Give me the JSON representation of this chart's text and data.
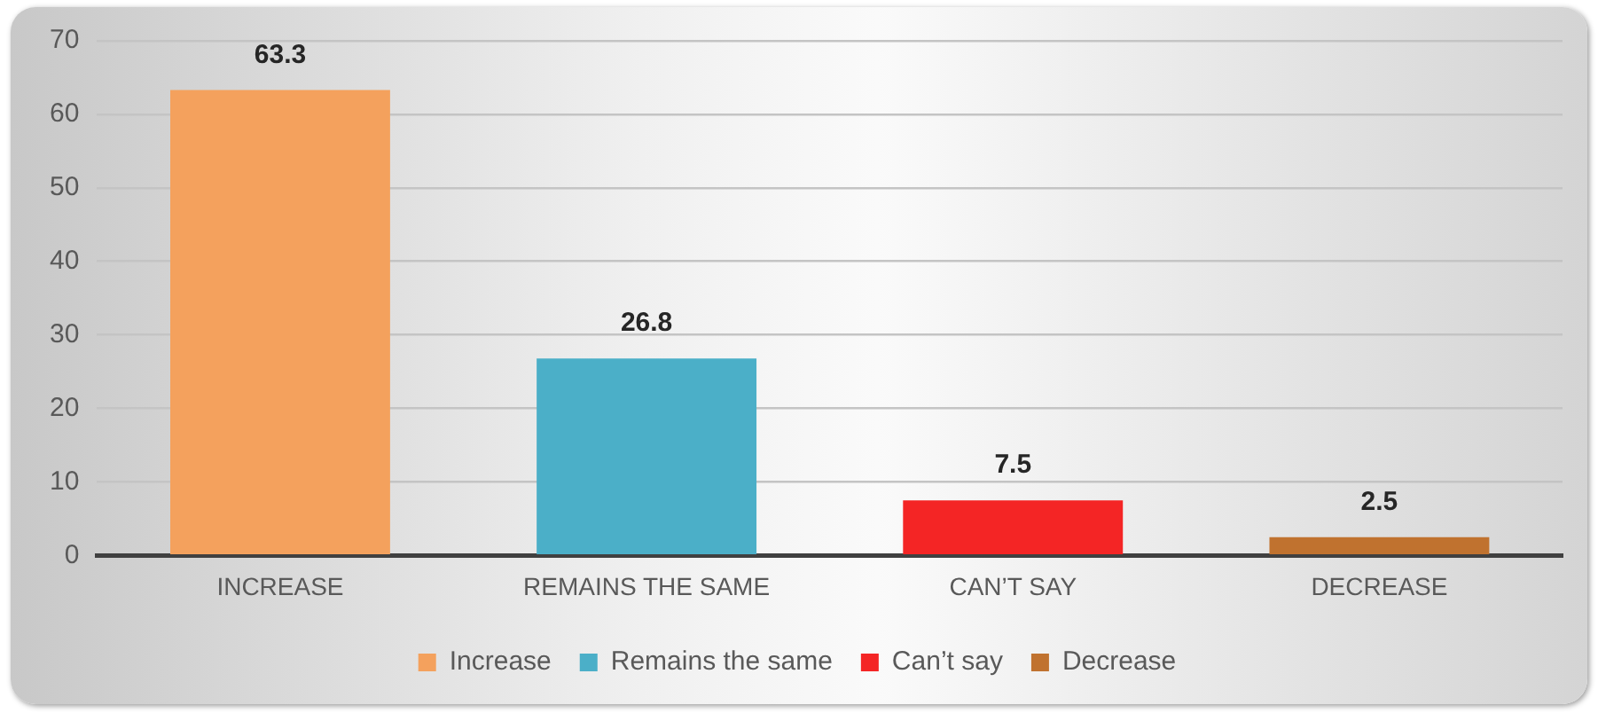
{
  "chart_data": {
    "type": "bar",
    "categories": [
      "INCREASE",
      "REMAINS THE SAME",
      "CAN’T SAY",
      "DECREASE"
    ],
    "series": [
      {
        "name": "Increase",
        "color": "#f4a15d",
        "values": [
          63.3,
          null,
          null,
          null
        ]
      },
      {
        "name": "Remains the same",
        "color": "#4bafc8",
        "values": [
          null,
          26.8,
          null,
          null
        ]
      },
      {
        "name": "Can’t say",
        "color": "#f42525",
        "values": [
          null,
          null,
          7.5,
          null
        ]
      },
      {
        "name": "Decrease",
        "color": "#c0722f",
        "values": [
          null,
          null,
          null,
          2.5
        ]
      }
    ],
    "ylim": [
      0,
      70
    ],
    "yticks": [
      0,
      10,
      20,
      30,
      40,
      50,
      60,
      70
    ],
    "grid": "y",
    "legend": "bottom",
    "data_labels": true
  }
}
